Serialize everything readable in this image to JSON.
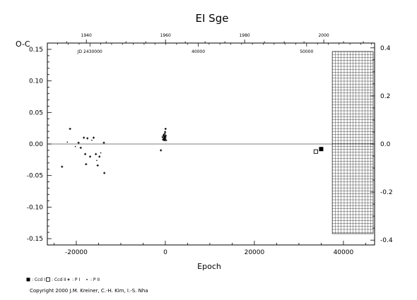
{
  "chart_data": {
    "type": "scatter",
    "title": "EI Sge",
    "ylabel": "O-C",
    "xlabel": "Epoch",
    "xlim": [
      -26500,
      47000
    ],
    "ylim": [
      -0.16,
      0.16
    ],
    "xticks": [
      -20000,
      0,
      20000,
      40000
    ],
    "xtick_labels": [
      "-20000",
      "0",
      "20000",
      "40000"
    ],
    "yticks": [
      -0.15,
      -0.1,
      -0.05,
      0.0,
      0.05,
      0.1,
      0.15
    ],
    "ytick_labels": [
      "-0.15",
      "-0.10",
      "-0.05",
      "0.00",
      "0.05",
      "0.10",
      "0.15"
    ],
    "y2_ticks": [
      -0.4,
      -0.2,
      0.0,
      0.2,
      0.4
    ],
    "y2_tick_labels": [
      "-0.4",
      "-0.2",
      "0.0",
      "0.2",
      "0.4"
    ],
    "y2lim": [
      -0.42,
      0.42
    ],
    "top_year_ticks": [
      1940,
      1960,
      1980,
      2000
    ],
    "top_year_labels": [
      "1940",
      "1960",
      "1980",
      "2000"
    ],
    "jd_ticks": [
      30000,
      40000,
      50000
    ],
    "jd_labels": [
      "JD 2430000",
      "40000",
      "50000"
    ],
    "epoch_year0": 1959.96,
    "days_per_epoch": 0.411,
    "future_start_epoch": 37500,
    "hatch": true,
    "series": [
      {
        "name": "Ccd I",
        "marker": "filled-square",
        "x": [
          35000
        ],
        "y": [
          -0.008
        ]
      },
      {
        "name": "Ccd II",
        "marker": "open-square",
        "x": [
          33800
        ],
        "y": [
          -0.012
        ]
      },
      {
        "name": "P I",
        "marker": "plus",
        "x": [
          -23200,
          -21400,
          -19500,
          -19000,
          -18300,
          -18000,
          -17800,
          -17500,
          -16900,
          -16100,
          -15600,
          -15200,
          -14800,
          -13800,
          -13700,
          -1000,
          -600,
          -500,
          -400,
          -300,
          -250,
          -200,
          -150,
          -100,
          -50,
          0,
          50,
          100,
          150
        ],
        "y": [
          -0.036,
          0.024,
          0.002,
          -0.006,
          0.01,
          -0.016,
          -0.032,
          0.009,
          -0.02,
          0.01,
          -0.016,
          -0.034,
          -0.02,
          0.002,
          -0.046,
          -0.01,
          0.011,
          0.007,
          0.014,
          0.009,
          0.006,
          0.012,
          0.016,
          0.008,
          0.019,
          0.01,
          0.024,
          0.013,
          0.006
        ]
      },
      {
        "name": "P II",
        "marker": "dot",
        "x": [
          -22000,
          -20200,
          -16500,
          -15400,
          -14500
        ],
        "y": [
          0.003,
          -0.004,
          0.006,
          -0.026,
          -0.014
        ]
      }
    ],
    "legend_placement": "bottom-left"
  },
  "copyright": "Copyright 2000 J.M. Kreiner, C.-H. Kim, I.-S. Nha"
}
